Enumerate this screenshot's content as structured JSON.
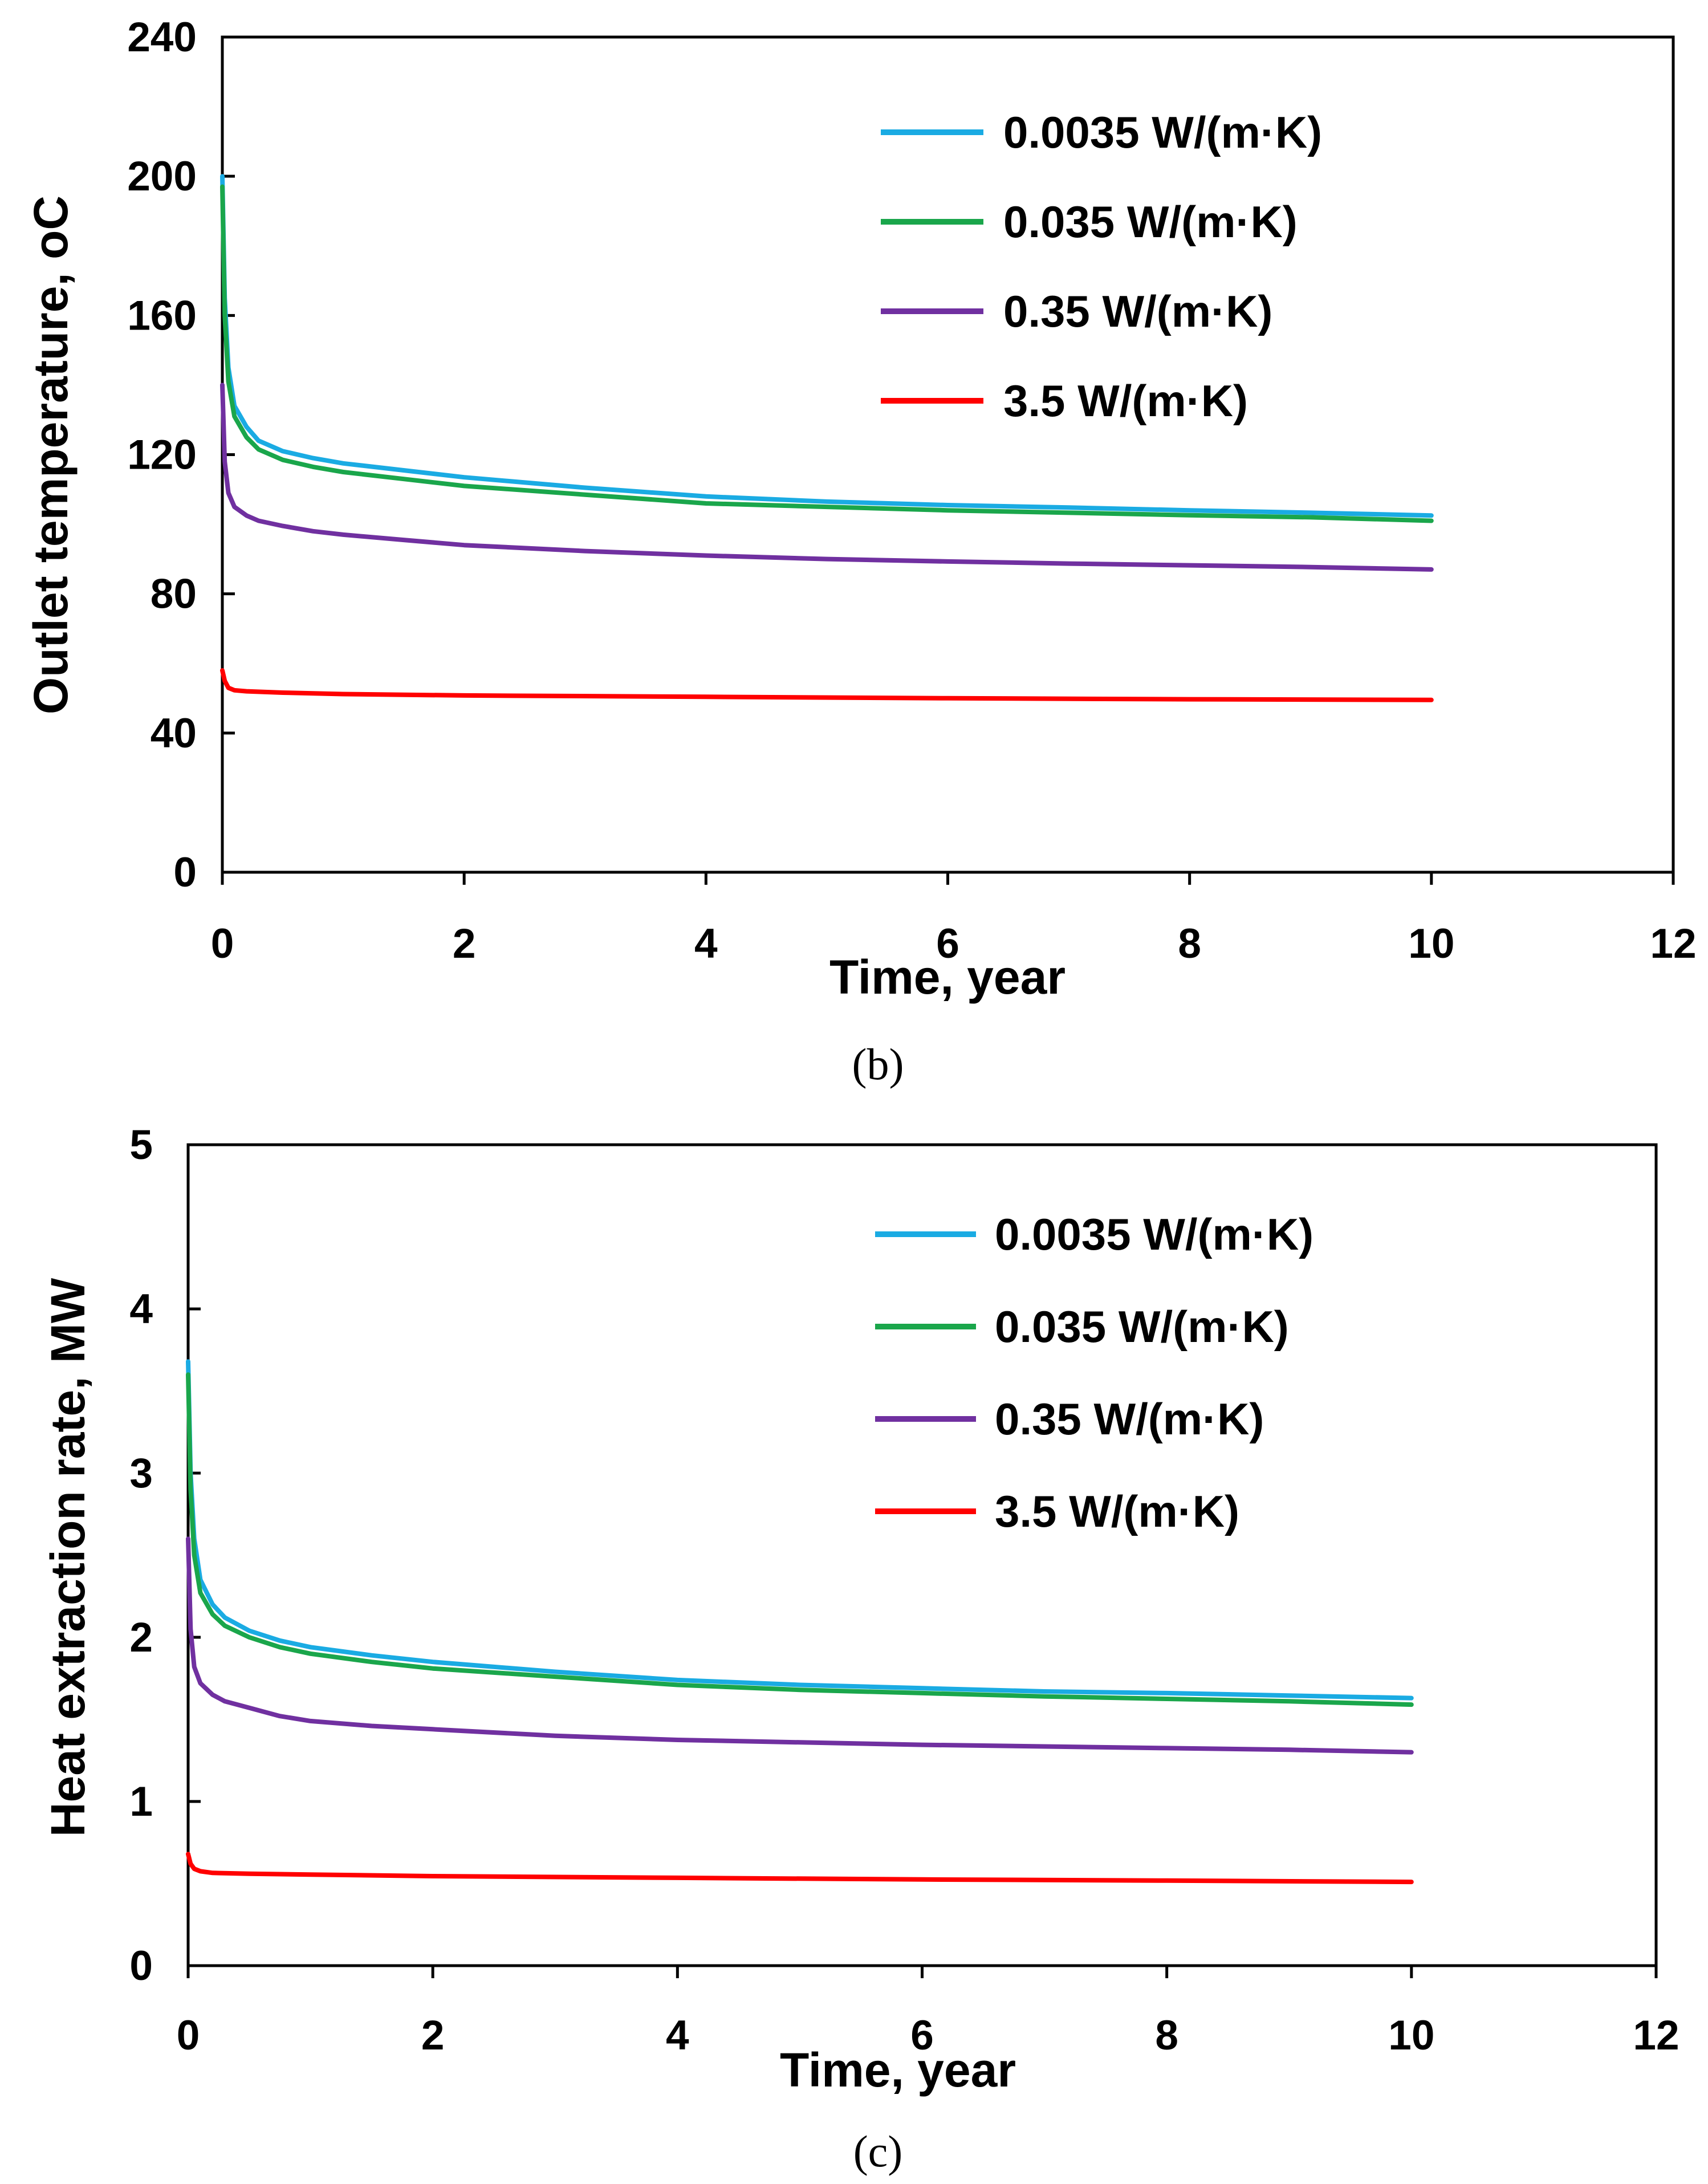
{
  "chart_data": [
    {
      "type": "line",
      "panel": "(b)",
      "title": "",
      "xlabel": "Time, year",
      "ylabel": "Outlet temperature, ",
      "ylabel_unit": "oC",
      "xlim": [
        0,
        12
      ],
      "ylim": [
        0,
        240
      ],
      "xticks": [
        0,
        2,
        4,
        6,
        8,
        10,
        12
      ],
      "yticks": [
        0,
        40,
        80,
        120,
        160,
        200,
        240
      ],
      "grid": false,
      "legend_position": "top-right",
      "series": [
        {
          "name": "0.0035 W/(m·K)",
          "color": "#1aabe3",
          "x": [
            0,
            0.02,
            0.05,
            0.1,
            0.2,
            0.3,
            0.5,
            0.75,
            1,
            1.5,
            2,
            3,
            4,
            5,
            6,
            7,
            8,
            9,
            10
          ],
          "values": [
            200,
            165,
            145,
            134,
            128,
            124,
            121,
            119,
            117.5,
            115.5,
            113.5,
            110.5,
            108,
            106.5,
            105.5,
            104.8,
            104,
            103.3,
            102.5
          ]
        },
        {
          "name": "0.035 W/(m·K)",
          "color": "#1aa64b",
          "x": [
            0,
            0.02,
            0.05,
            0.1,
            0.2,
            0.3,
            0.5,
            0.75,
            1,
            1.5,
            2,
            3,
            4,
            5,
            6,
            7,
            8,
            9,
            10
          ],
          "values": [
            197,
            160,
            141,
            131,
            125,
            121.5,
            118.5,
            116.5,
            115,
            113,
            111,
            108.5,
            106,
            105,
            104,
            103.3,
            102.6,
            102,
            101
          ]
        },
        {
          "name": "0.35 W/(m·K)",
          "color": "#7030a0",
          "x": [
            0,
            0.02,
            0.05,
            0.1,
            0.2,
            0.3,
            0.5,
            0.75,
            1,
            1.5,
            2,
            3,
            4,
            5,
            6,
            7,
            8,
            9,
            10
          ],
          "values": [
            140,
            118,
            109,
            105,
            102.5,
            101,
            99.5,
            98,
            97,
            95.5,
            94,
            92.3,
            91,
            90,
            89.3,
            88.7,
            88.2,
            87.7,
            87
          ]
        },
        {
          "name": "3.5 W/(m·K)",
          "color": "#ff0000",
          "x": [
            0,
            0.02,
            0.05,
            0.1,
            0.2,
            0.5,
            1,
            2,
            4,
            6,
            8,
            10
          ],
          "values": [
            58,
            55,
            53,
            52.3,
            52,
            51.6,
            51.2,
            50.8,
            50.4,
            50,
            49.7,
            49.5
          ]
        }
      ]
    },
    {
      "type": "line",
      "panel": "(c)",
      "title": "",
      "xlabel": "Time, year",
      "ylabel": "Heat extraction rate, MW",
      "xlim": [
        0,
        12
      ],
      "ylim": [
        0,
        5
      ],
      "xticks": [
        0,
        2,
        4,
        6,
        8,
        10,
        12
      ],
      "yticks": [
        0,
        1,
        2,
        3,
        4,
        5
      ],
      "grid": false,
      "legend_position": "top-right",
      "series": [
        {
          "name": "0.0035 W/(m·K)",
          "color": "#1aabe3",
          "x": [
            0,
            0.02,
            0.05,
            0.1,
            0.2,
            0.3,
            0.5,
            0.75,
            1,
            1.5,
            2,
            3,
            4,
            5,
            6,
            7,
            8,
            9,
            10
          ],
          "values": [
            3.68,
            3.0,
            2.6,
            2.35,
            2.2,
            2.12,
            2.04,
            1.98,
            1.94,
            1.89,
            1.85,
            1.79,
            1.74,
            1.71,
            1.69,
            1.67,
            1.66,
            1.645,
            1.63
          ]
        },
        {
          "name": "0.035 W/(m·K)",
          "color": "#1aa64b",
          "x": [
            0,
            0.02,
            0.05,
            0.1,
            0.2,
            0.3,
            0.5,
            0.75,
            1,
            1.5,
            2,
            3,
            4,
            5,
            6,
            7,
            8,
            9,
            10
          ],
          "values": [
            3.6,
            2.9,
            2.5,
            2.27,
            2.14,
            2.07,
            2.0,
            1.94,
            1.9,
            1.85,
            1.81,
            1.76,
            1.71,
            1.68,
            1.66,
            1.64,
            1.625,
            1.61,
            1.59
          ]
        },
        {
          "name": "0.35 W/(m·K)",
          "color": "#7030a0",
          "x": [
            0,
            0.02,
            0.05,
            0.1,
            0.2,
            0.3,
            0.5,
            0.75,
            1,
            1.5,
            2,
            3,
            4,
            5,
            6,
            7,
            8,
            9,
            10
          ],
          "values": [
            2.6,
            2.05,
            1.82,
            1.72,
            1.65,
            1.61,
            1.57,
            1.52,
            1.49,
            1.46,
            1.44,
            1.4,
            1.375,
            1.36,
            1.345,
            1.335,
            1.325,
            1.315,
            1.3
          ]
        },
        {
          "name": "3.5 W/(m·K)",
          "color": "#ff0000",
          "x": [
            0,
            0.02,
            0.05,
            0.1,
            0.2,
            0.5,
            1,
            2,
            4,
            6,
            8,
            10
          ],
          "values": [
            0.68,
            0.62,
            0.59,
            0.575,
            0.565,
            0.56,
            0.555,
            0.545,
            0.535,
            0.525,
            0.518,
            0.51
          ]
        }
      ]
    }
  ]
}
